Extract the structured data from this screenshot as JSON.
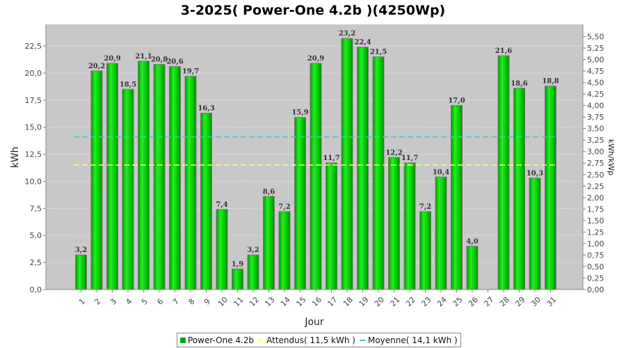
{
  "chart_data": {
    "type": "bar",
    "title": "3-2025( Power-One 4.2b )(4250Wp)",
    "xlabel": "Jour",
    "ylabel": "kWh",
    "y2label": "kWh/kWp",
    "categories": [
      "1",
      "2",
      "3",
      "4",
      "5",
      "6",
      "7",
      "8",
      "9",
      "10",
      "11",
      "12",
      "13",
      "14",
      "15",
      "16",
      "17",
      "18",
      "19",
      "20",
      "21",
      "22",
      "23",
      "24",
      "25",
      "26",
      "27",
      "28",
      "29",
      "30",
      "31"
    ],
    "series": [
      {
        "name": "Power-One 4.2b",
        "color": "#00cc00",
        "values": [
          3.2,
          20.2,
          20.9,
          18.5,
          21.1,
          20.8,
          20.6,
          19.7,
          16.3,
          7.4,
          1.9,
          3.2,
          8.6,
          7.2,
          15.9,
          20.9,
          11.7,
          23.2,
          22.4,
          21.5,
          12.2,
          11.7,
          7.2,
          10.4,
          17.0,
          4.0,
          null,
          21.6,
          18.6,
          10.3,
          18.8
        ],
        "labels": [
          "3,2",
          "20,2",
          "20,9",
          "18,5",
          "21,1",
          "20,8",
          "20,6",
          "19,7",
          "16,3",
          "7,4",
          "1,9",
          "3,2",
          "8,6",
          "7,2",
          "15,9",
          "20,9",
          "11,7",
          "23,2",
          "22,4",
          "21,5",
          "12,2",
          "11,7",
          "7,2",
          "10,4",
          "17,0",
          "4,0",
          "",
          "21,6",
          "18,6",
          "10,3",
          "18,8"
        ]
      }
    ],
    "reference_lines": [
      {
        "name": "Attendus",
        "value": 11.5,
        "color": "#ffff66"
      },
      {
        "name": "Moyenne",
        "value": 14.1,
        "color": "#33cccc"
      }
    ],
    "ylim": [
      0,
      24.5
    ],
    "yticks": [
      "0,0",
      "2,5",
      "5,0",
      "7,5",
      "10,0",
      "12,5",
      "15,0",
      "17,5",
      "20,0",
      "22,5"
    ],
    "y2lim": [
      0,
      5.7647
    ],
    "y2ticks": [
      "0,00",
      "0,25",
      "0,50",
      "0,75",
      "1,00",
      "1,25",
      "1,50",
      "1,75",
      "2,00",
      "2,25",
      "2,50",
      "2,75",
      "3,00",
      "3,25",
      "3,50",
      "3,75",
      "4,00",
      "4,25",
      "4,50",
      "4,75",
      "5,00",
      "5,25",
      "5,50"
    ],
    "grid": true,
    "background": "#c8c8c8",
    "legend_position": "bottom"
  },
  "legend": {
    "items": [
      {
        "label": "Power-One 4.2b",
        "kind": "box",
        "color": "#00aa00"
      },
      {
        "label": "Attendus( 11,5 kWh )",
        "kind": "line",
        "color": "#ffff66"
      },
      {
        "label": "Moyenne( 14,1 kWh )",
        "kind": "line",
        "color": "#33cccc"
      }
    ]
  }
}
